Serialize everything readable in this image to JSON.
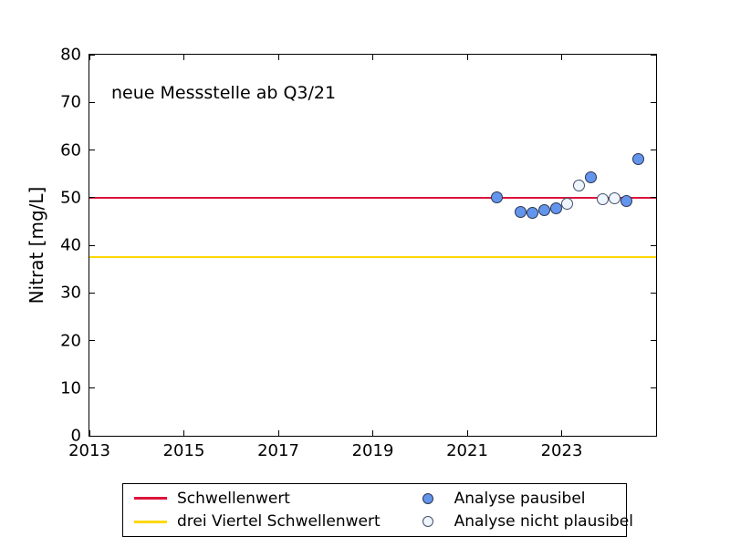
{
  "chart_data": {
    "type": "scatter",
    "title": "",
    "annotation": "neue Messstelle ab Q3/21",
    "xlabel": "",
    "ylabel": "Nitrat [mg/L]",
    "xlim": [
      2013,
      2025
    ],
    "ylim": [
      0,
      80
    ],
    "xticks": [
      2013,
      2015,
      2017,
      2019,
      2021,
      2023
    ],
    "yticks": [
      0,
      10,
      20,
      30,
      40,
      50,
      60,
      70,
      80
    ],
    "grid": false,
    "tick_style": "inward-all-sides",
    "hlines": [
      {
        "name": "Schwellenwert",
        "y": 50,
        "color": "#dc143c"
      },
      {
        "name": "drei Viertel Schwellenwert",
        "y": 37.5,
        "color": "#ffd700"
      }
    ],
    "series": [
      {
        "name": "Analyse pausibel",
        "marker": "circle-filled",
        "fill": "#6495ed",
        "edge": "#2a3550",
        "points": [
          {
            "x": 2021.625,
            "y": 50.1
          },
          {
            "x": 2022.125,
            "y": 46.9
          },
          {
            "x": 2022.375,
            "y": 46.7
          },
          {
            "x": 2022.625,
            "y": 47.4
          },
          {
            "x": 2022.875,
            "y": 47.7
          },
          {
            "x": 2023.625,
            "y": 54.2
          },
          {
            "x": 2024.375,
            "y": 49.3
          },
          {
            "x": 2024.625,
            "y": 58.0
          }
        ]
      },
      {
        "name": "Analyse nicht plausibel",
        "marker": "circle-open",
        "fill": "#eff5fc",
        "edge": "#44506a",
        "points": [
          {
            "x": 2023.125,
            "y": 48.8
          },
          {
            "x": 2023.375,
            "y": 52.6
          },
          {
            "x": 2023.875,
            "y": 49.6
          },
          {
            "x": 2024.125,
            "y": 49.8
          }
        ]
      }
    ],
    "legend": {
      "position": "below-center",
      "items": [
        {
          "type": "line",
          "color": "#dc143c",
          "label": "Schwellenwert"
        },
        {
          "type": "line",
          "color": "#ffd700",
          "label": "drei Viertel Schwellenwert"
        },
        {
          "type": "marker-filled",
          "fill": "#6495ed",
          "edge": "#2a3550",
          "label": "Analyse pausibel"
        },
        {
          "type": "marker-open",
          "fill": "#eff5fc",
          "edge": "#44506a",
          "label": "Analyse nicht plausibel"
        }
      ]
    }
  }
}
